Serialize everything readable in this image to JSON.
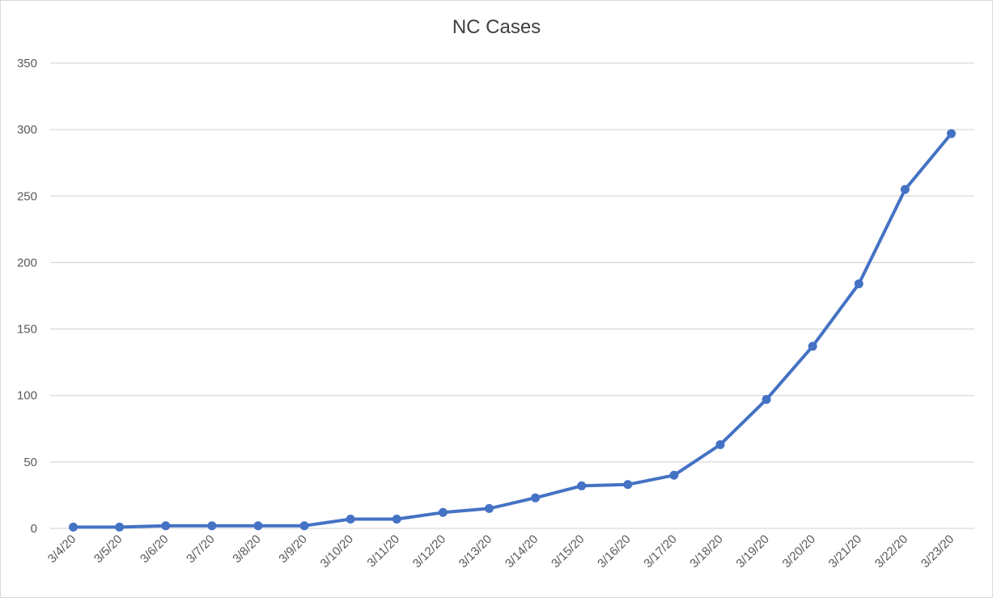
{
  "chart_data": {
    "type": "line",
    "title": "NC Cases",
    "xlabel": "",
    "ylabel": "",
    "ylim": [
      0,
      350
    ],
    "yticks": [
      0,
      50,
      100,
      150,
      200,
      250,
      300,
      350
    ],
    "grid": true,
    "legend": "none",
    "categories": [
      "3/4/20",
      "3/5/20",
      "3/6/20",
      "3/7/20",
      "3/8/20",
      "3/9/20",
      "3/10/20",
      "3/11/20",
      "3/12/20",
      "3/13/20",
      "3/14/20",
      "3/15/20",
      "3/16/20",
      "3/17/20",
      "3/18/20",
      "3/19/20",
      "3/20/20",
      "3/21/20",
      "3/22/20",
      "3/23/20"
    ],
    "series": [
      {
        "color": "#4472c4",
        "values": [
          1,
          1,
          2,
          2,
          2,
          2,
          7,
          7,
          12,
          15,
          23,
          32,
          33,
          40,
          63,
          97,
          137,
          184,
          255,
          297
        ]
      }
    ]
  }
}
